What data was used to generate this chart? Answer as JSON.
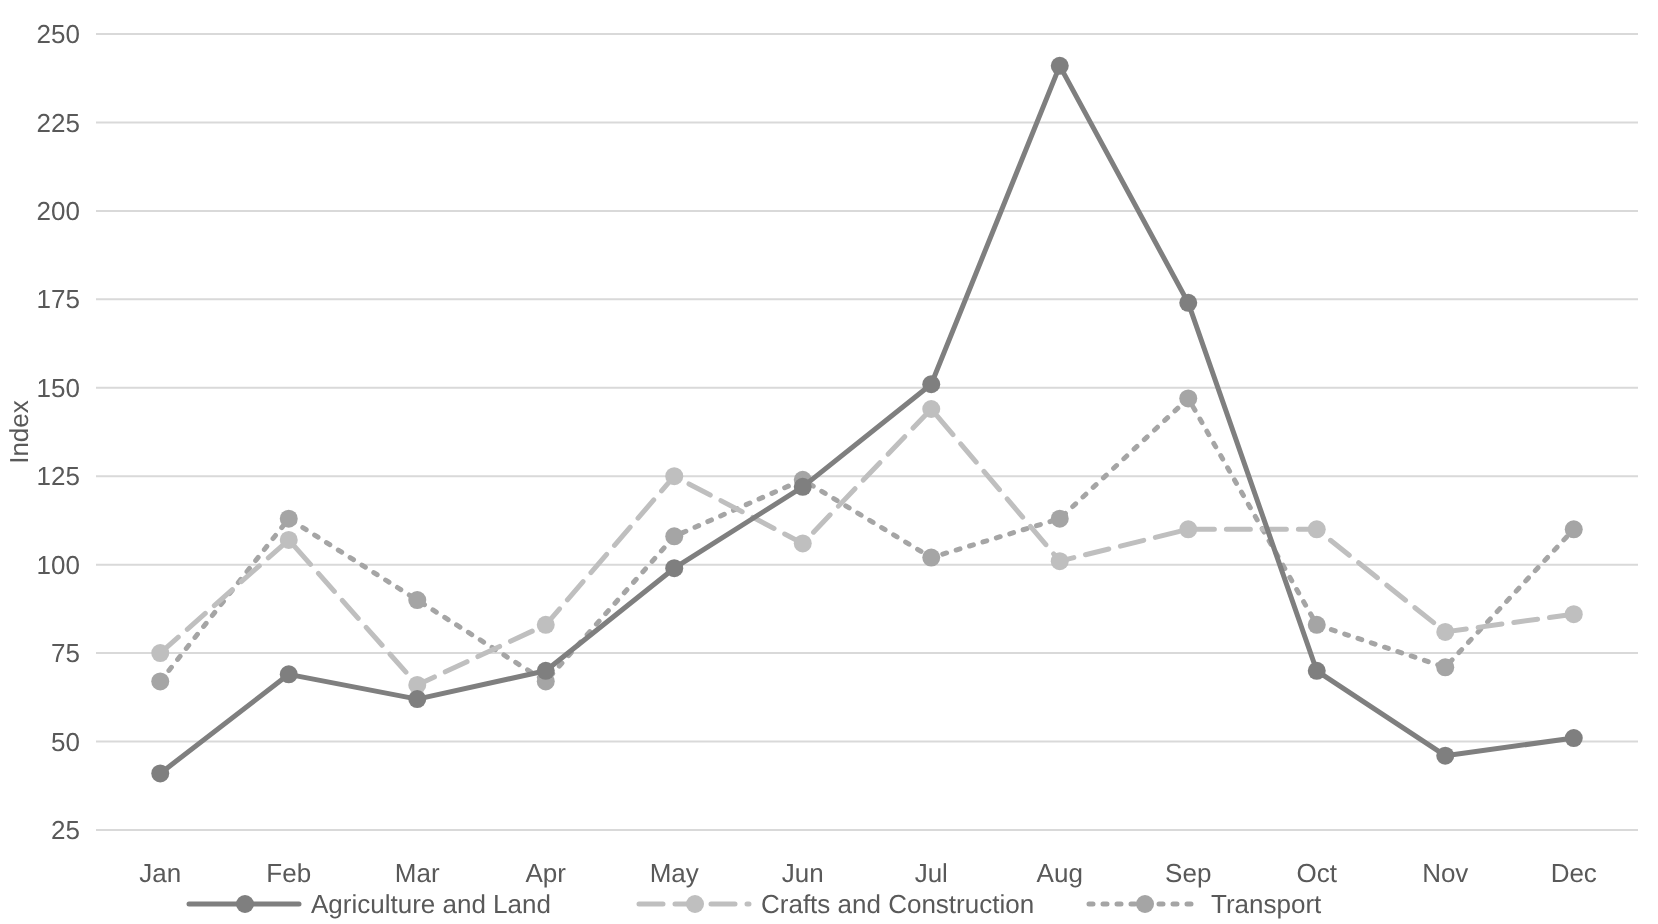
{
  "chart_data": {
    "type": "line",
    "ylabel": "Index",
    "categories": [
      "Jan",
      "Feb",
      "Mar",
      "Apr",
      "May",
      "Jun",
      "Jul",
      "Aug",
      "Sep",
      "Oct",
      "Nov",
      "Dec"
    ],
    "series": [
      {
        "name": "Agriculture and Land",
        "color": "#7f7f7f",
        "line_style": "solid",
        "values": [
          41,
          69,
          62,
          70,
          99,
          122,
          151,
          241,
          174,
          70,
          46,
          51
        ]
      },
      {
        "name": "Crafts and Construction",
        "color": "#bfbfbf",
        "line_style": "dashed",
        "values": [
          75,
          107,
          66,
          83,
          125,
          106,
          144,
          101,
          110,
          110,
          81,
          86
        ]
      },
      {
        "name": "Transport",
        "color": "#a5a5a5",
        "line_style": "dotted",
        "values": [
          67,
          113,
          90,
          67,
          108,
          124,
          102,
          113,
          147,
          83,
          71,
          110
        ]
      }
    ],
    "ylim": [
      25,
      250
    ],
    "yticks": [
      25,
      50,
      75,
      100,
      125,
      150,
      175,
      200,
      225,
      250
    ],
    "grid": "y",
    "legend": "bottom",
    "marker": "circle"
  }
}
